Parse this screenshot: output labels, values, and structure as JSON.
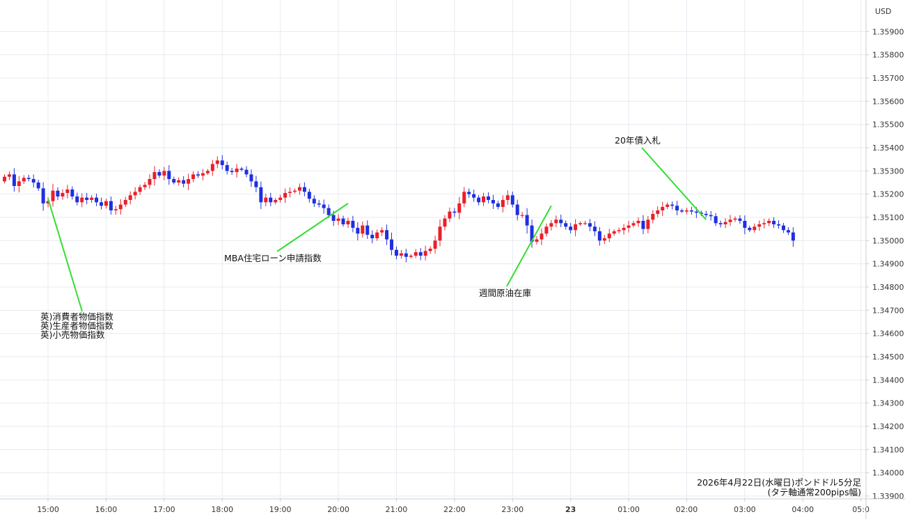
{
  "chart_data": {
    "type": "candlestick",
    "title": "2026年4月22日(水曜日)ポンドドル5分足",
    "subtitle": "(タテ軸通常200pips幅)",
    "currency_label": "USD",
    "ylim": [
      1.339,
      1.36
    ],
    "y_ticks": [
      "1.35900",
      "1.35800",
      "1.35700",
      "1.35600",
      "1.35500",
      "1.35400",
      "1.35300",
      "1.35200",
      "1.35100",
      "1.35000",
      "1.34900",
      "1.34800",
      "1.34700",
      "1.34600",
      "1.34500",
      "1.34400",
      "1.34300",
      "1.34200",
      "1.34100",
      "1.34000",
      "1.33900"
    ],
    "x_ticks": [
      {
        "label": "15:00",
        "index": 9
      },
      {
        "label": "16:00",
        "index": 21
      },
      {
        "label": "17:00",
        "index": 33
      },
      {
        "label": "18:00",
        "index": 45
      },
      {
        "label": "19:00",
        "index": 57
      },
      {
        "label": "20:00",
        "index": 69
      },
      {
        "label": "21:00",
        "index": 81
      },
      {
        "label": "22:00",
        "index": 93
      },
      {
        "label": "23:00",
        "index": 105
      },
      {
        "label": "23",
        "index": 117
      },
      {
        "label": "01:00",
        "index": 129
      },
      {
        "label": "02:00",
        "index": 141
      },
      {
        "label": "03:00",
        "index": 153
      },
      {
        "label": "04:00",
        "index": 165
      },
      {
        "label": "05:0",
        "index": 177
      }
    ],
    "grid": true,
    "up_color": "#e8202a",
    "down_color": "#1f2fe0",
    "closes": [
      1.35275,
      1.35285,
      1.35235,
      1.35255,
      1.3527,
      1.35265,
      1.3525,
      1.35225,
      1.3516,
      1.3517,
      1.35215,
      1.3519,
      1.35205,
      1.3522,
      1.3519,
      1.35165,
      1.35185,
      1.35175,
      1.35185,
      1.35165,
      1.3515,
      1.3517,
      1.3513,
      1.35135,
      1.35155,
      1.35175,
      1.35195,
      1.3521,
      1.3523,
      1.3524,
      1.35265,
      1.35295,
      1.3528,
      1.353,
      1.35265,
      1.3525,
      1.3526,
      1.35245,
      1.35265,
      1.35285,
      1.3528,
      1.3529,
      1.353,
      1.3533,
      1.35345,
      1.35325,
      1.353,
      1.35295,
      1.3531,
      1.35305,
      1.35285,
      1.35255,
      1.3523,
      1.35165,
      1.35185,
      1.35165,
      1.35175,
      1.35185,
      1.35205,
      1.3521,
      1.35215,
      1.3523,
      1.3521,
      1.3518,
      1.3516,
      1.35155,
      1.3514,
      1.3511,
      1.35085,
      1.35095,
      1.3507,
      1.35085,
      1.35055,
      1.3503,
      1.35065,
      1.35025,
      1.3501,
      1.35035,
      1.35045,
      1.35005,
      1.3496,
      1.34935,
      1.34945,
      1.3493,
      1.34935,
      1.3495,
      1.34935,
      1.34955,
      1.34965,
      1.35,
      1.3506,
      1.35095,
      1.35125,
      1.3512,
      1.3516,
      1.3521,
      1.352,
      1.35185,
      1.35165,
      1.3519,
      1.35175,
      1.3516,
      1.35145,
      1.35175,
      1.35195,
      1.35155,
      1.3511,
      1.3511,
      1.35065,
      1.34995,
      1.35005,
      1.3503,
      1.3506,
      1.35075,
      1.3509,
      1.35075,
      1.3506,
      1.35045,
      1.3507,
      1.35075,
      1.35075,
      1.3506,
      1.3504,
      1.35,
      1.3501,
      1.3503,
      1.3504,
      1.35045,
      1.35055,
      1.35065,
      1.35075,
      1.35085,
      1.3505,
      1.3509,
      1.35115,
      1.3513,
      1.35145,
      1.35155,
      1.3515,
      1.3513,
      1.35125,
      1.3513,
      1.35125,
      1.3512,
      1.35115,
      1.3511,
      1.35105,
      1.35075,
      1.3507,
      1.3508,
      1.3509,
      1.35095,
      1.35085,
      1.35055,
      1.35045,
      1.3506,
      1.3507,
      1.35075,
      1.35085,
      1.3507,
      1.35065,
      1.35045,
      1.35035,
      1.35
    ],
    "annotations": [
      {
        "lines": [
          "英)消費者物価指数",
          "英)生産者物価指数",
          "英)小売物価指数"
        ],
        "index": 9,
        "price": 1.3518
      },
      {
        "lines": [
          "MBA住宅ローン申請指数"
        ],
        "index": 71,
        "price": 1.3516
      },
      {
        "lines": [
          "週間原油在庫"
        ],
        "index": 113,
        "price": 1.3515
      },
      {
        "lines": [
          "20年債入札"
        ],
        "index": 145,
        "price": 1.3509
      }
    ]
  }
}
